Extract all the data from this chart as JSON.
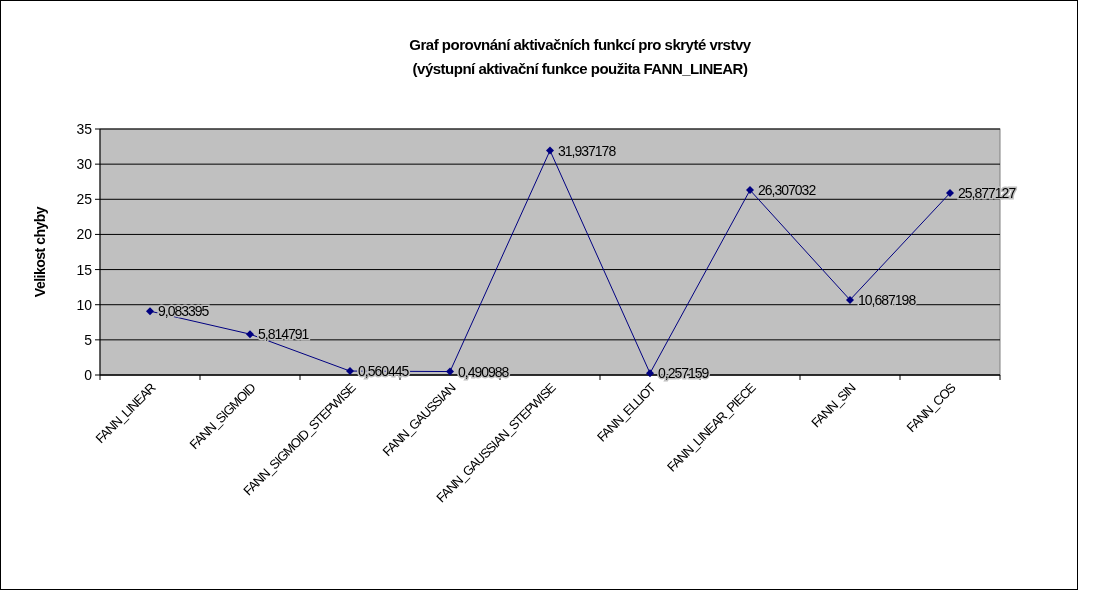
{
  "chart_data": {
    "type": "line",
    "title": "Graf porovnání aktivačních funkcí pro skryté vrstvy",
    "subtitle": "(výstupní aktivační funkce použita FANN_LINEAR)",
    "ylabel": "Velikost chyby",
    "categories": [
      "FANN_LINEAR",
      "FANN_SIGMOID",
      "FANN_SIGMOID_STEPWISE",
      "FANN_GAUSSIAN",
      "FANN_GAUSSIAN_STEPWISE",
      "FANN_ELLIOT",
      "FANN_LINEAR_PIECE",
      "FANN_SIN",
      "FANN_COS"
    ],
    "series": [
      {
        "color": "#000080",
        "values": [
          9.083395,
          5.814791,
          0.560445,
          0.490988,
          31.937178,
          0.257159,
          26.307032,
          10.687198,
          25.877127
        ],
        "value_labels": [
          "9,083395",
          "5,814791",
          "0,560445",
          "0,490988",
          "31,937178",
          "0,257159",
          "26,307032",
          "10,687198",
          "25,877127"
        ]
      }
    ],
    "ylim": [
      0,
      35
    ],
    "yticks": [
      0,
      5,
      10,
      15,
      20,
      25,
      30,
      35
    ],
    "grid": "y",
    "marker": "diamond",
    "line_style": "solid"
  }
}
